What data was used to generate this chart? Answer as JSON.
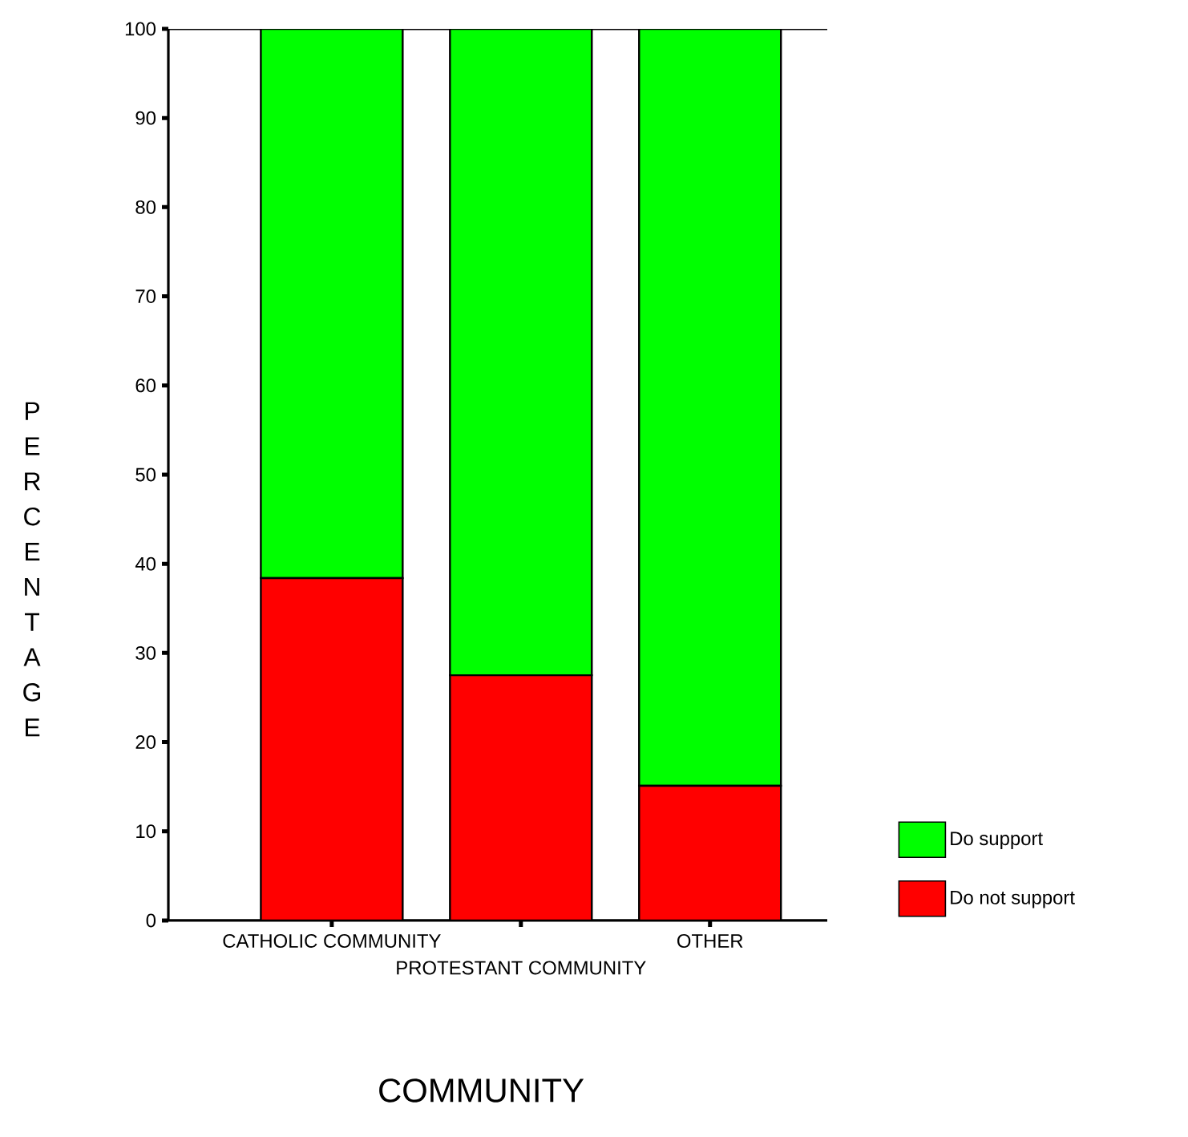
{
  "chart_data": {
    "type": "bar",
    "stacked": true,
    "xlabel": "COMMUNITY",
    "ylabel": "PERCENTAGE",
    "categories": [
      "CATHOLIC COMMUNITY",
      "PROTESTANT COMMUNITY",
      "OTHER"
    ],
    "series": [
      {
        "name": "Do not support",
        "color": "#ff0000",
        "values": [
          38.4,
          27.5,
          15.1
        ]
      },
      {
        "name": "Do support",
        "color": "#00ff00",
        "values": [
          61.6,
          72.5,
          84.9
        ]
      }
    ],
    "ylim": [
      0,
      100
    ],
    "yticks": [
      0,
      10,
      20,
      30,
      40,
      50,
      60,
      70,
      80,
      90,
      100
    ],
    "legend": "bottom right"
  }
}
